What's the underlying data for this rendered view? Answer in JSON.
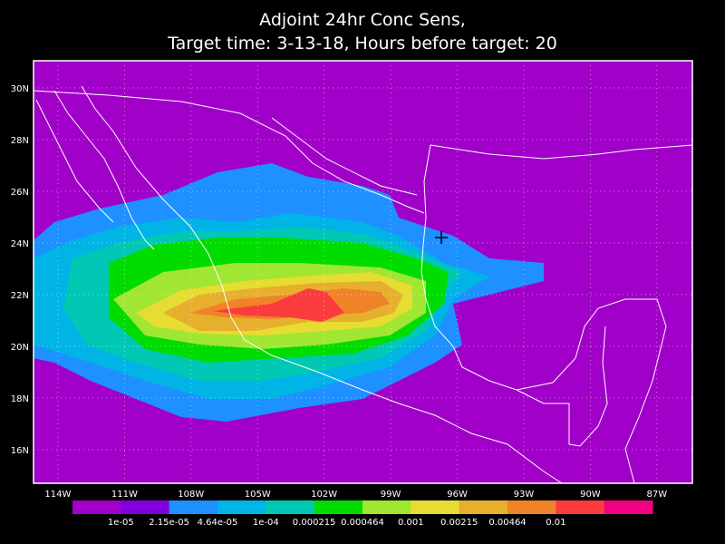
{
  "header": {
    "title": [
      "Adjoint 24hr Conc Sens,",
      "Target time: 3-13-18, Hours before target: 20"
    ]
  },
  "map": {
    "lon_range": [
      -115.1,
      -85.4
    ],
    "lat_range": [
      14.7,
      31.05
    ],
    "background": "#a000c8",
    "lon_ticks": [
      {
        "value": -114,
        "label": "114W"
      },
      {
        "value": -111,
        "label": "111W"
      },
      {
        "value": -108,
        "label": "108W"
      },
      {
        "value": -105,
        "label": "105W"
      },
      {
        "value": -102,
        "label": "102W"
      },
      {
        "value": -99,
        "label": "99W"
      },
      {
        "value": -96,
        "label": "96W"
      },
      {
        "value": -93,
        "label": "93W"
      },
      {
        "value": -90,
        "label": "90W"
      },
      {
        "value": -87,
        "label": "87W"
      }
    ],
    "lat_ticks": [
      {
        "value": 30,
        "label": "30N"
      },
      {
        "value": 28,
        "label": "28N"
      },
      {
        "value": 26,
        "label": "26N"
      },
      {
        "value": 24,
        "label": "24N"
      },
      {
        "value": 22,
        "label": "22N"
      },
      {
        "value": 20,
        "label": "20N"
      },
      {
        "value": 18,
        "label": "18N"
      },
      {
        "value": 16,
        "label": "16N"
      }
    ]
  },
  "colorbar": {
    "colors": [
      "#a000c8",
      "#8200dc",
      "#1e90ff",
      "#00b4e6",
      "#00c8b4",
      "#00dc00",
      "#a0e632",
      "#e6dc32",
      "#e6af2d",
      "#f08228",
      "#fa3c3c",
      "#f00082"
    ],
    "labels": [
      "1e-05",
      "2.15e-05",
      "4.64e-05",
      "1e-04",
      "0.000215",
      "0.000464",
      "0.001",
      "0.00215",
      "0.00464",
      "0.01"
    ]
  }
}
